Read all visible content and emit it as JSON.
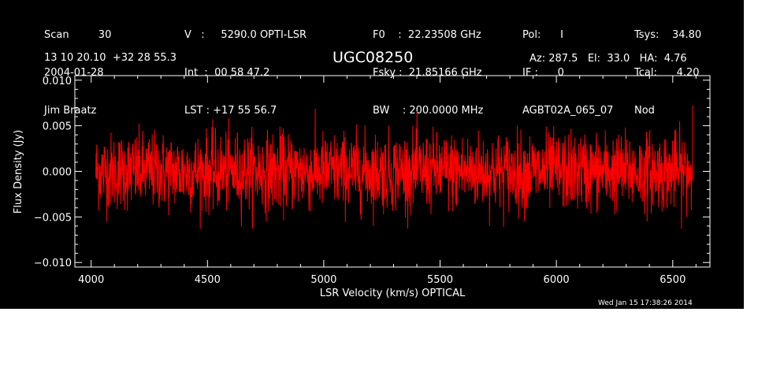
{
  "header": {
    "col1": [
      "Scan         30",
      "2004-01-28",
      "Jim Braatz"
    ],
    "col2": [
      "V   :     5290.0 OPTI-LSR",
      "Int  :  00 58 47.2",
      "LST : +17 55 56.7"
    ],
    "col3": [
      "F0    :  22.23508 GHz",
      "Fsky :  21.85166 GHz",
      "BW    : 200.0000 MHz"
    ],
    "col4": [
      "Pol:      I",
      "IF :      0",
      "AGBT02A_065_07"
    ],
    "col5": [
      "Tsys:    34.80",
      "Tcal:      4.20",
      "Nod"
    ],
    "coords": "13 10 20.10  +32 28 55.3",
    "source": "UGC08250",
    "pointing": "Az: 287.5   El:  33.0   HA:  4.76"
  },
  "timestamp": "Wed Jan 15 17:38:26 2014",
  "chart_data": {
    "type": "line",
    "title": "UGC08250",
    "xlabel": "LSR Velocity (km/s) OPTICAL",
    "ylabel": "Flux Density (Jy)",
    "xlim": [
      3930,
      6660
    ],
    "ylim": [
      -0.0105,
      0.0105
    ],
    "xticks": [
      4000,
      4500,
      5000,
      5500,
      6000,
      6500
    ],
    "yticks": [
      -0.01,
      -0.005,
      0.0,
      0.005,
      0.01
    ],
    "ytick_labels": [
      "−0.010",
      "−0.005",
      "0.000",
      "0.005",
      "0.010"
    ],
    "grid": false,
    "series": [
      {
        "color": "#ff0000",
        "x_start": 4020,
        "x_end": 6585,
        "mean": 0.0,
        "noise_rms": 0.0021,
        "peak_max": 0.0072,
        "peak_min": -0.0063,
        "npoints": 2000
      }
    ]
  }
}
